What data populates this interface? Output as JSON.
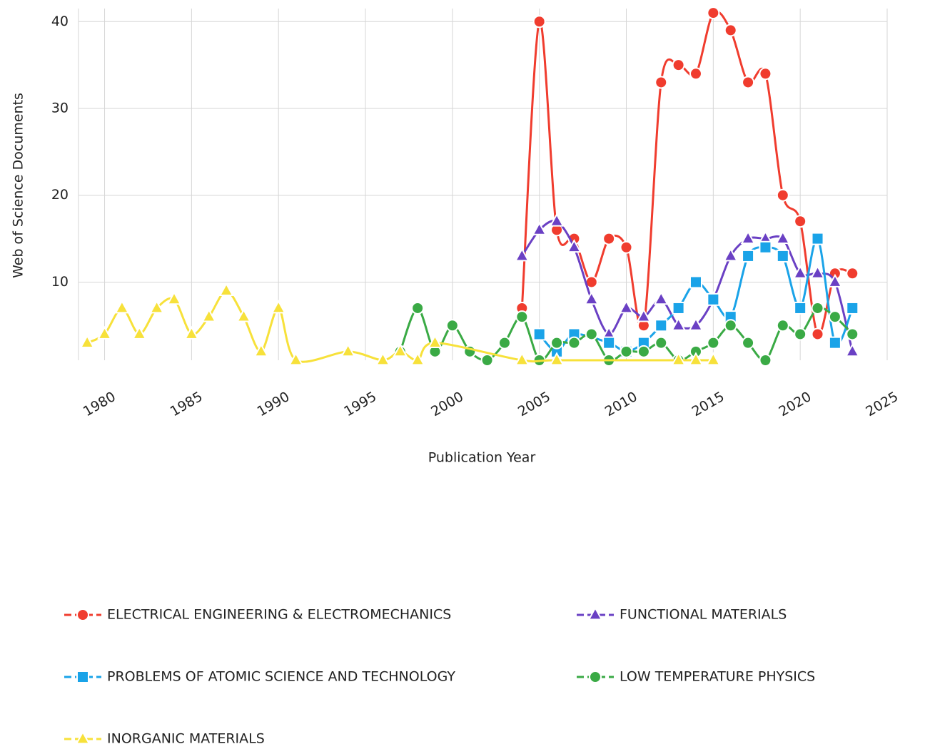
{
  "chart_data": {
    "type": "line",
    "xlabel": "Publication Year",
    "ylabel": "Web of Science Documents",
    "xlim": [
      1978.5,
      2025
    ],
    "xticks": [
      1980,
      1985,
      1990,
      1995,
      2000,
      2005,
      2010,
      2015,
      2020,
      2025
    ],
    "ylim": [
      1,
      41.5
    ],
    "yticks": [
      10,
      20,
      30,
      40
    ],
    "grid": true,
    "series": [
      {
        "name": "ELECTRICAL ENGINEERING & ELECTROMECHANICS",
        "color": "#f03c2e",
        "marker": "circle",
        "x": [
          2004,
          2005,
          2006,
          2007,
          2008,
          2009,
          2010,
          2011,
          2012,
          2013,
          2014,
          2015,
          2016,
          2017,
          2018,
          2019,
          2020,
          2021,
          2022,
          2023
        ],
        "values": [
          7,
          40,
          16,
          15,
          10,
          15,
          14,
          5,
          33,
          35,
          34,
          41,
          39,
          33,
          34,
          20,
          17,
          4,
          11,
          11
        ]
      },
      {
        "name": "FUNCTIONAL MATERIALS",
        "color": "#6a40c4",
        "marker": "triangle",
        "x": [
          2004,
          2005,
          2006,
          2007,
          2008,
          2009,
          2010,
          2011,
          2012,
          2013,
          2014,
          2015,
          2016,
          2017,
          2018,
          2019,
          2020,
          2021,
          2022,
          2023
        ],
        "values": [
          13,
          16,
          17,
          14,
          8,
          4,
          7,
          6,
          8,
          5,
          5,
          8,
          13,
          15,
          15,
          15,
          11,
          11,
          10,
          2
        ]
      },
      {
        "name": "PROBLEMS OF ATOMIC SCIENCE AND TECHNOLOGY",
        "color": "#1aa3e8",
        "marker": "square",
        "x": [
          2005,
          2006,
          2007,
          2009,
          2010,
          2011,
          2012,
          2013,
          2014,
          2015,
          2016,
          2017,
          2018,
          2019,
          2020,
          2021,
          2022,
          2023
        ],
        "values": [
          4,
          2,
          4,
          3,
          2,
          3,
          5,
          7,
          10,
          8,
          6,
          13,
          14,
          13,
          7,
          15,
          3,
          7
        ]
      },
      {
        "name": "LOW TEMPERATURE PHYSICS",
        "color": "#3aaa45",
        "marker": "circle",
        "x": [
          1997,
          1998,
          1999,
          2000,
          2001,
          2002,
          2003,
          2004,
          2005,
          2006,
          2007,
          2008,
          2009,
          2010,
          2011,
          2012,
          2013,
          2014,
          2015,
          2016,
          2017,
          2018,
          2019,
          2020,
          2021,
          2022,
          2023
        ],
        "values": [
          2,
          7,
          2,
          5,
          2,
          1,
          3,
          6,
          1,
          3,
          3,
          4,
          1,
          2,
          2,
          3,
          1,
          2,
          3,
          5,
          3,
          1,
          5,
          4,
          7,
          6,
          4
        ]
      },
      {
        "name": "INORGANIC MATERIALS",
        "color": "#f7e13a",
        "marker": "triangle",
        "x": [
          1979,
          1980,
          1981,
          1982,
          1983,
          1984,
          1985,
          1986,
          1987,
          1988,
          1989,
          1990,
          1991,
          1994,
          1996,
          1997,
          1998,
          1999,
          2004,
          2006,
          2013,
          2014,
          2015
        ],
        "values": [
          3,
          4,
          7,
          4,
          7,
          8,
          4,
          6,
          9,
          6,
          2,
          7,
          1,
          2,
          1,
          2,
          1,
          3,
          1,
          1,
          1,
          1,
          1
        ]
      }
    ]
  }
}
